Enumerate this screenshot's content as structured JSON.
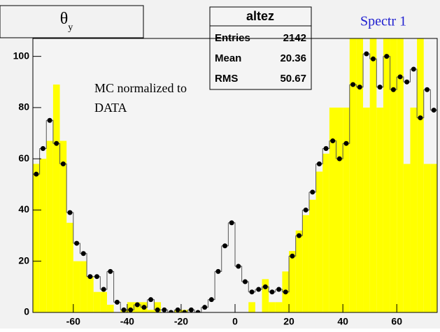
{
  "chart_data": {
    "type": "histogram",
    "title": "θ",
    "title_sub": "y",
    "annotation": [
      "MC normalized to",
      "DATA"
    ],
    "label": "Spectr 1",
    "stats": {
      "name": "altez",
      "rows": [
        [
          "Entries",
          "2142"
        ],
        [
          "Mean",
          "20.36"
        ],
        [
          "RMS",
          "50.67"
        ]
      ]
    },
    "bins": [
      -75,
      -72.5,
      -70,
      -67.5,
      -65,
      -62.5,
      -60,
      -57.5,
      -55,
      -52.5,
      -50,
      -47.5,
      -45,
      -42.5,
      -40,
      -37.5,
      -35,
      -32.5,
      -30,
      -27.5,
      -25,
      -22.5,
      -20,
      -17.5,
      -15,
      -12.5,
      -10,
      -7.5,
      -5,
      -2.5,
      0,
      2.5,
      5,
      7.5,
      10,
      12.5,
      15,
      17.5,
      20,
      22.5,
      25,
      27.5,
      30,
      32.5,
      35,
      37.5,
      40,
      42.5,
      45,
      47.5,
      50,
      52.5,
      55,
      57.5,
      60,
      62.5,
      65,
      67.5,
      70,
      72.5,
      75
    ],
    "series": [
      {
        "style": "fill",
        "color": "#ffff00",
        "values": [
          58,
          60,
          67,
          89,
          67,
          35,
          20,
          20,
          14,
          8,
          8,
          3,
          0,
          1,
          4,
          4,
          4,
          1,
          4,
          0,
          0,
          1,
          1,
          0,
          0,
          0,
          0,
          0,
          0,
          0,
          0,
          0,
          4,
          0,
          13,
          4,
          4,
          16,
          24,
          32,
          38,
          44,
          55,
          62,
          80,
          80,
          80,
          110,
          110,
          80,
          110,
          80,
          110,
          110,
          110,
          58,
          80,
          110,
          58,
          58
        ]
      },
      {
        "style": "points",
        "color": "#000000",
        "values": [
          54,
          64,
          75,
          66,
          58,
          39,
          27,
          23,
          14,
          14,
          9,
          16,
          4,
          1,
          1,
          3,
          2,
          5,
          1,
          1,
          0,
          1,
          0,
          1,
          0,
          2,
          5,
          16,
          26,
          35,
          18,
          12,
          8,
          9,
          10,
          8,
          9,
          8,
          22,
          30,
          40,
          47,
          58,
          64,
          67,
          60,
          66,
          89,
          88,
          101,
          99,
          88,
          100,
          87,
          92,
          90,
          95,
          76,
          87,
          79
        ]
      }
    ],
    "xlim": [
      -75,
      75
    ],
    "ylim": [
      0,
      107
    ],
    "xticks": [
      -60,
      -40,
      -20,
      0,
      20,
      40,
      60
    ],
    "yticks": [
      0,
      20,
      40,
      60,
      80,
      100
    ]
  }
}
